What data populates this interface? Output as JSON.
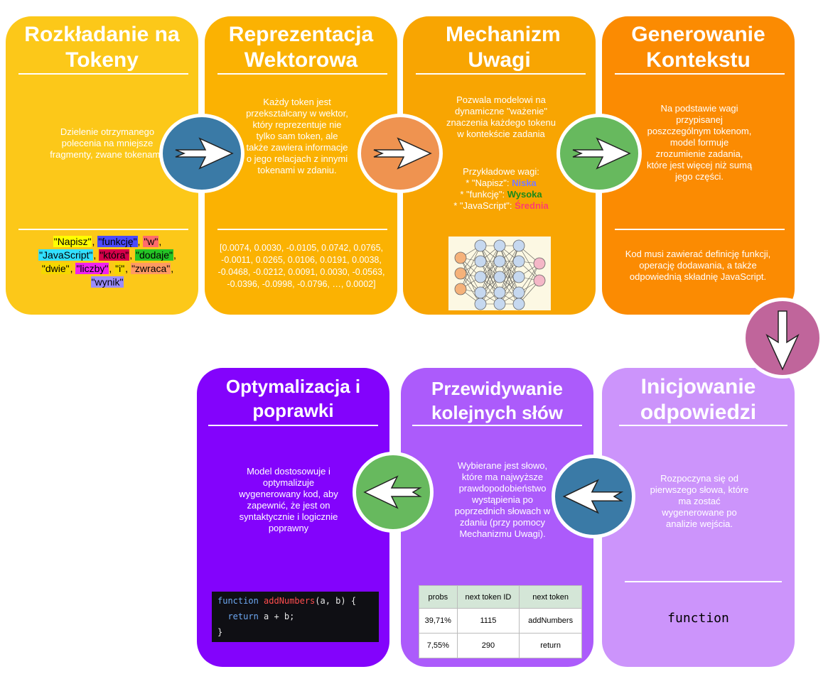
{
  "stages": [
    {
      "title": "Rozkładanie na Tokeny",
      "description": "Dzielenie otrzymanego polecenia na mniejsze fragmenty, zwane tokenami.",
      "color": "#fcc819"
    },
    {
      "title": "Reprezentacja Wektorowa",
      "description": "Każdy token jest przekształcany w wektor, który reprezentuje nie tylko sam token, ale także zawiera informacje o jego relacjach z innymi tokenami w zdaniu.",
      "color": "#fbb202"
    },
    {
      "title": "Mechanizm Uwagi",
      "description": "Pozwala modelowi na dynamiczne \"ważenie\" znaczenia każdego tokenu w kontekście zadania",
      "color": "#f8a502"
    },
    {
      "title": "Generowanie Kontekstu",
      "description": "Na podstawie wagi przypisanej poszczególnym tokenom, model formuje zrozumienie zadania, które jest więcej niż sumą jego części.",
      "color": "#fb8b02"
    },
    {
      "title": "Inicjowanie odpowiedzi",
      "description": "Rozpoczyna się od pierwszego słowa, które ma zostać wygenerowane po analizie wejścia.",
      "color": "#cc94fb"
    },
    {
      "title": "Przewidywanie kolejnych słów",
      "description": "Wybierane jest słowo, które ma najwyższe prawdopodobieństwo wystąpienia po poprzednich słowach w zdaniu (przy pomocy Mechanizmu Uwagi).",
      "color": "#ac5bfb"
    },
    {
      "title": "Optymalizacja i poprawki",
      "description": "Model dostosowuje i optymalizuje wygenerowany kod, aby zapewnić, że jest on syntaktycznie i logicznie poprawny",
      "color": "#8303fc"
    }
  ],
  "tokens": [
    {
      "text": "\"Napisz\"",
      "color": "#ffff00"
    },
    {
      "text": "\"funkcję\"",
      "color": "#4a4aff"
    },
    {
      "text": "\"w\"",
      "color": "#ff6b6b"
    },
    {
      "text": "\"JavaScript\"",
      "color": "#33e0ff"
    },
    {
      "text": "\"która\"",
      "color": "#d6004a"
    },
    {
      "text": "\"dodaje\"",
      "color": "#25c425"
    },
    {
      "text": "\"dwie\"",
      "color": "#f5d800"
    },
    {
      "text": "\"liczby\"",
      "color": "#f020f0"
    },
    {
      "text": "\"i\"",
      "color": "#f5d800"
    },
    {
      "text": "\"zwraca\"",
      "color": "#ff9a63"
    },
    {
      "text": "\"wynik\"",
      "color": "#9b8cff"
    }
  ],
  "vector_text": "[0.0074, 0.0030, -0.0105, 0.0742, 0.0765, -0.0011, 0.0265, 0.0106, 0.0191, 0.0038, -0.0468, -0.0212, 0.0091, 0.0030, -0.0563, -0.0396, -0.0998, -0.0796, …, 0.0002]",
  "attention": {
    "heading": "Przykładowe wagi:",
    "rows": [
      {
        "prefix": "* \"Napisz\": ",
        "weight": "Niska",
        "color": "#7a7aff"
      },
      {
        "prefix": "*  \"funkcję\": ",
        "weight": "Wysoka",
        "color": "#1a8a1a"
      },
      {
        "prefix": "* \"JavaScript\": ",
        "weight": "Średnia",
        "color": "#ff3d6e"
      }
    ]
  },
  "context_note": "Kod musi zawierać definicję funkcji, operację dodawania, a także odpowiednią składnię JavaScript.",
  "start_token": "function",
  "prob_table": {
    "headers": [
      "probs",
      "next token ID",
      "next token"
    ],
    "rows": [
      [
        "39,71%",
        "1115",
        "addNumbers"
      ],
      [
        "7,55%",
        "290",
        "return"
      ]
    ]
  },
  "code": {
    "kw1": "function",
    "fname": "addNumbers",
    "sig": "(a, b) {",
    "kw2": "return",
    "body": " a + b;",
    "close": "}"
  },
  "arrow_colors": {
    "blue": "#3a7aa6",
    "orange": "#ef9350",
    "green": "#67b95e",
    "pink": "#c0659b"
  }
}
